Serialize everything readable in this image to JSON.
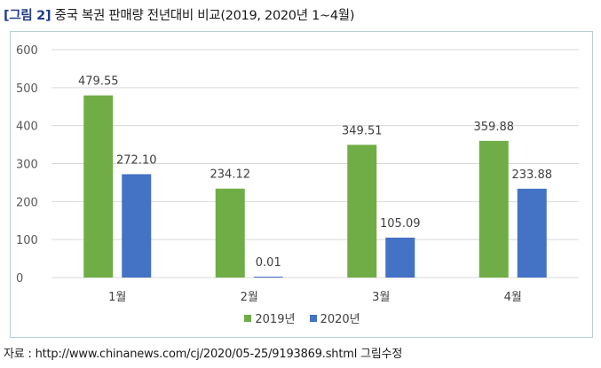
{
  "figure": {
    "label": "[그림 2]",
    "title": "중국 복권 판매량 전년대비 비교(2019, 2020년 1~4월)"
  },
  "source": "자료 : http://www.chinanews.com/cj/2020/05-25/9193869.shtml 그림수정",
  "colors": {
    "series_2019": "#70ad47",
    "series_2020": "#4472c4",
    "grid": "#d9d9d9",
    "frame": "#b8cfd8"
  },
  "chart_data": {
    "type": "bar",
    "title": "중국 복권 판매량 전년대비 비교(2019, 2020년 1~4월)",
    "categories": [
      "1월",
      "2월",
      "3월",
      "4월"
    ],
    "series": [
      {
        "name": "2019년",
        "values": [
          479.55,
          234.12,
          349.51,
          359.88
        ],
        "labels": [
          "479.55",
          "234.12",
          "349.51",
          "359.88"
        ]
      },
      {
        "name": "2020년",
        "values": [
          272.1,
          0.01,
          105.09,
          233.88
        ],
        "labels": [
          "272.10",
          "0.01",
          "105.09",
          "233.88"
        ]
      }
    ],
    "ylim": [
      0,
      600
    ],
    "yticks": [
      0,
      100,
      200,
      300,
      400,
      500,
      600
    ],
    "grid": true,
    "legend": "bottom-center",
    "xlabel": "",
    "ylabel": ""
  }
}
